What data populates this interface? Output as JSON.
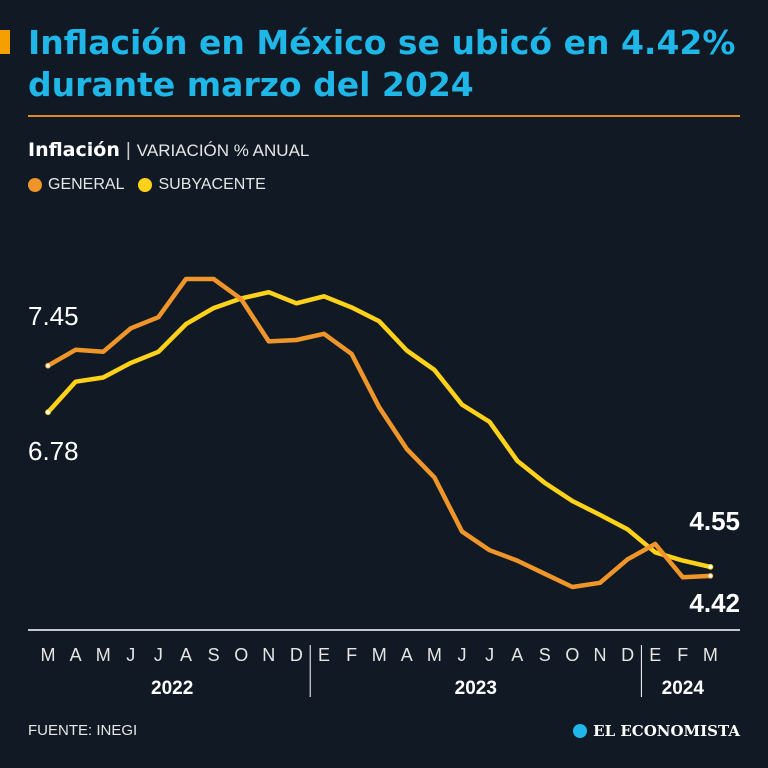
{
  "header": {
    "title": "Inflación en México se ubicó en 4.42% durante marzo del 2024",
    "subtitle_bold": "Inflación",
    "subtitle_separator": "|",
    "subtitle_unit": "VARIACIÓN % ANUAL",
    "accent_color": "#f5a000",
    "title_color": "#1fb6e8"
  },
  "legend": [
    {
      "label": "GENERAL",
      "color": "#f0952a"
    },
    {
      "label": "SUBYACENTE",
      "color": "#ffd21a"
    }
  ],
  "chart_data": {
    "type": "line",
    "title": "Inflación | VARIACIÓN % ANUAL",
    "x": [
      "M",
      "A",
      "M",
      "J",
      "J",
      "A",
      "S",
      "O",
      "N",
      "D",
      "E",
      "F",
      "M",
      "A",
      "M",
      "J",
      "J",
      "A",
      "S",
      "O",
      "N",
      "D",
      "E",
      "F",
      "M"
    ],
    "years": [
      {
        "label": "2022",
        "start": 0,
        "end": 9
      },
      {
        "label": "2023",
        "start": 10,
        "end": 21
      },
      {
        "label": "2024",
        "start": 22,
        "end": 24
      }
    ],
    "series": [
      {
        "name": "GENERAL",
        "color": "#f0952a",
        "values": [
          7.45,
          7.68,
          7.65,
          7.99,
          8.15,
          8.7,
          8.7,
          8.41,
          7.8,
          7.82,
          7.91,
          7.62,
          6.85,
          6.25,
          5.84,
          5.06,
          4.79,
          4.64,
          4.45,
          4.26,
          4.32,
          4.66,
          4.88,
          4.4,
          4.42
        ]
      },
      {
        "name": "SUBYACENTE",
        "color": "#ffd21a",
        "values": [
          6.78,
          7.22,
          7.28,
          7.49,
          7.65,
          8.05,
          8.28,
          8.42,
          8.51,
          8.35,
          8.45,
          8.29,
          8.09,
          7.67,
          7.39,
          6.89,
          6.64,
          6.08,
          5.76,
          5.5,
          5.3,
          5.09,
          4.76,
          4.64,
          4.55
        ]
      }
    ],
    "labels": {
      "general_start": "7.45",
      "subyacente_start": "6.78",
      "subyacente_end": "4.55",
      "general_end": "4.42"
    },
    "ylim": [
      3.8,
      9.0
    ],
    "grid": false
  },
  "footer": {
    "source": "FUENTE: INEGI",
    "brand": "EL ECONOMISTA"
  }
}
